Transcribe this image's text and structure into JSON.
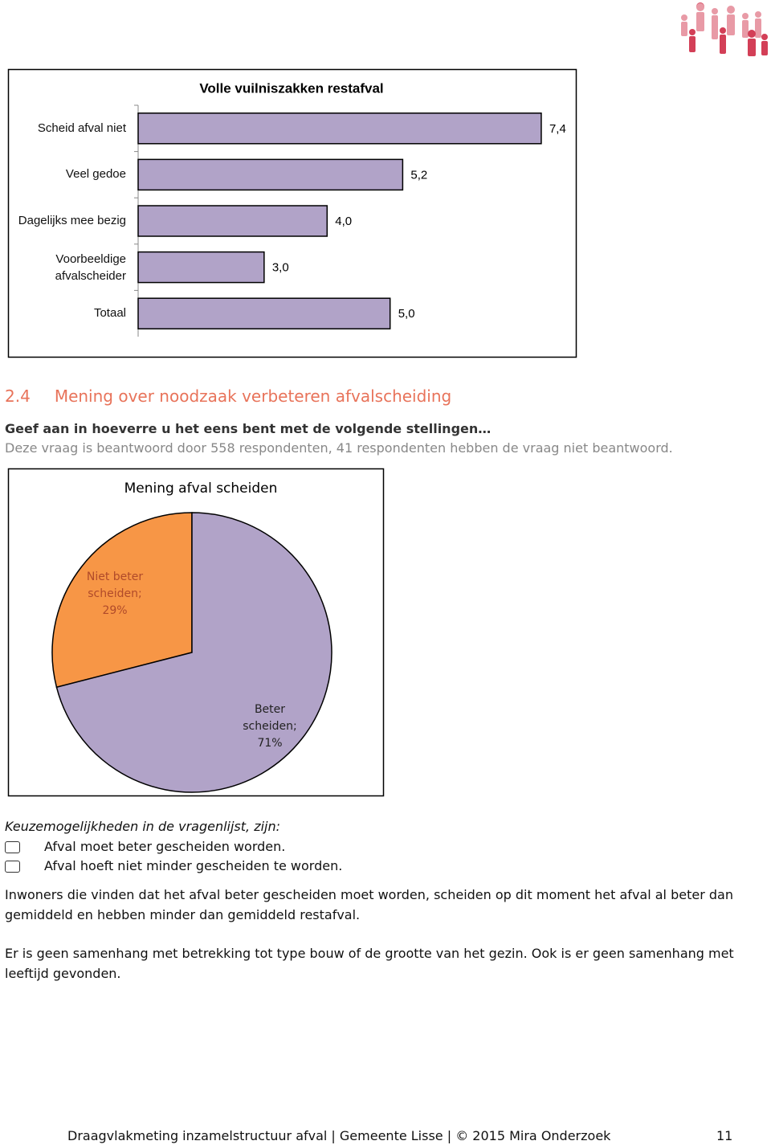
{
  "chart_data": [
    {
      "type": "bar",
      "orientation": "horizontal",
      "title": "Volle vuilniszakken restafval",
      "categories": [
        "Scheid afval niet",
        "Veel gedoe",
        "Dagelijks mee bezig",
        "Voorbeeldige afvalscheider",
        "Totaal"
      ],
      "values": [
        7.4,
        5.2,
        4.0,
        3.0,
        5.0
      ],
      "value_labels": [
        "7,4",
        "5,2",
        "4,0",
        "3,0",
        "5,0"
      ],
      "color": "#b1a3c8",
      "xlim": [
        1,
        8
      ]
    },
    {
      "type": "pie",
      "title": "Mening afval scheiden",
      "values": [
        29,
        71
      ],
      "value_labels": [
        "Niet beter scheiden; 29%",
        "Beter scheiden; 71%"
      ],
      "colors": [
        "#f79646",
        "#b1a3c8"
      ]
    }
  ],
  "section": {
    "number": "2.4",
    "title": "Mening over noodzaak verbeteren afvalscheiding"
  },
  "question": "Geef aan in hoeverre u het eens bent met de volgende stellingen…",
  "note": "Deze vraag is beantwoord door 558 respondenten, 41 respondenten hebben de vraag niet beantwoord.",
  "choices": {
    "intro": "Keuzemogelijkheden in de vragenlijst, zijn:",
    "items": [
      "Afval moet beter gescheiden worden.",
      "Afval hoeft niet minder gescheiden te worden."
    ]
  },
  "paragraphs": [
    "Inwoners die vinden dat het afval beter gescheiden moet worden, scheiden op dit moment het afval al beter dan gemiddeld en hebben minder dan gemiddeld restafval.",
    "Er is geen samenhang met betrekking tot type bouw of de grootte van het gezin. Ook is er geen samenhang met leeftijd gevonden."
  ],
  "footer": {
    "text": "Draagvlakmeting inzamelstructuur afval | Gemeente Lisse | © 2015 Mira Onderzoek",
    "page": "11"
  }
}
